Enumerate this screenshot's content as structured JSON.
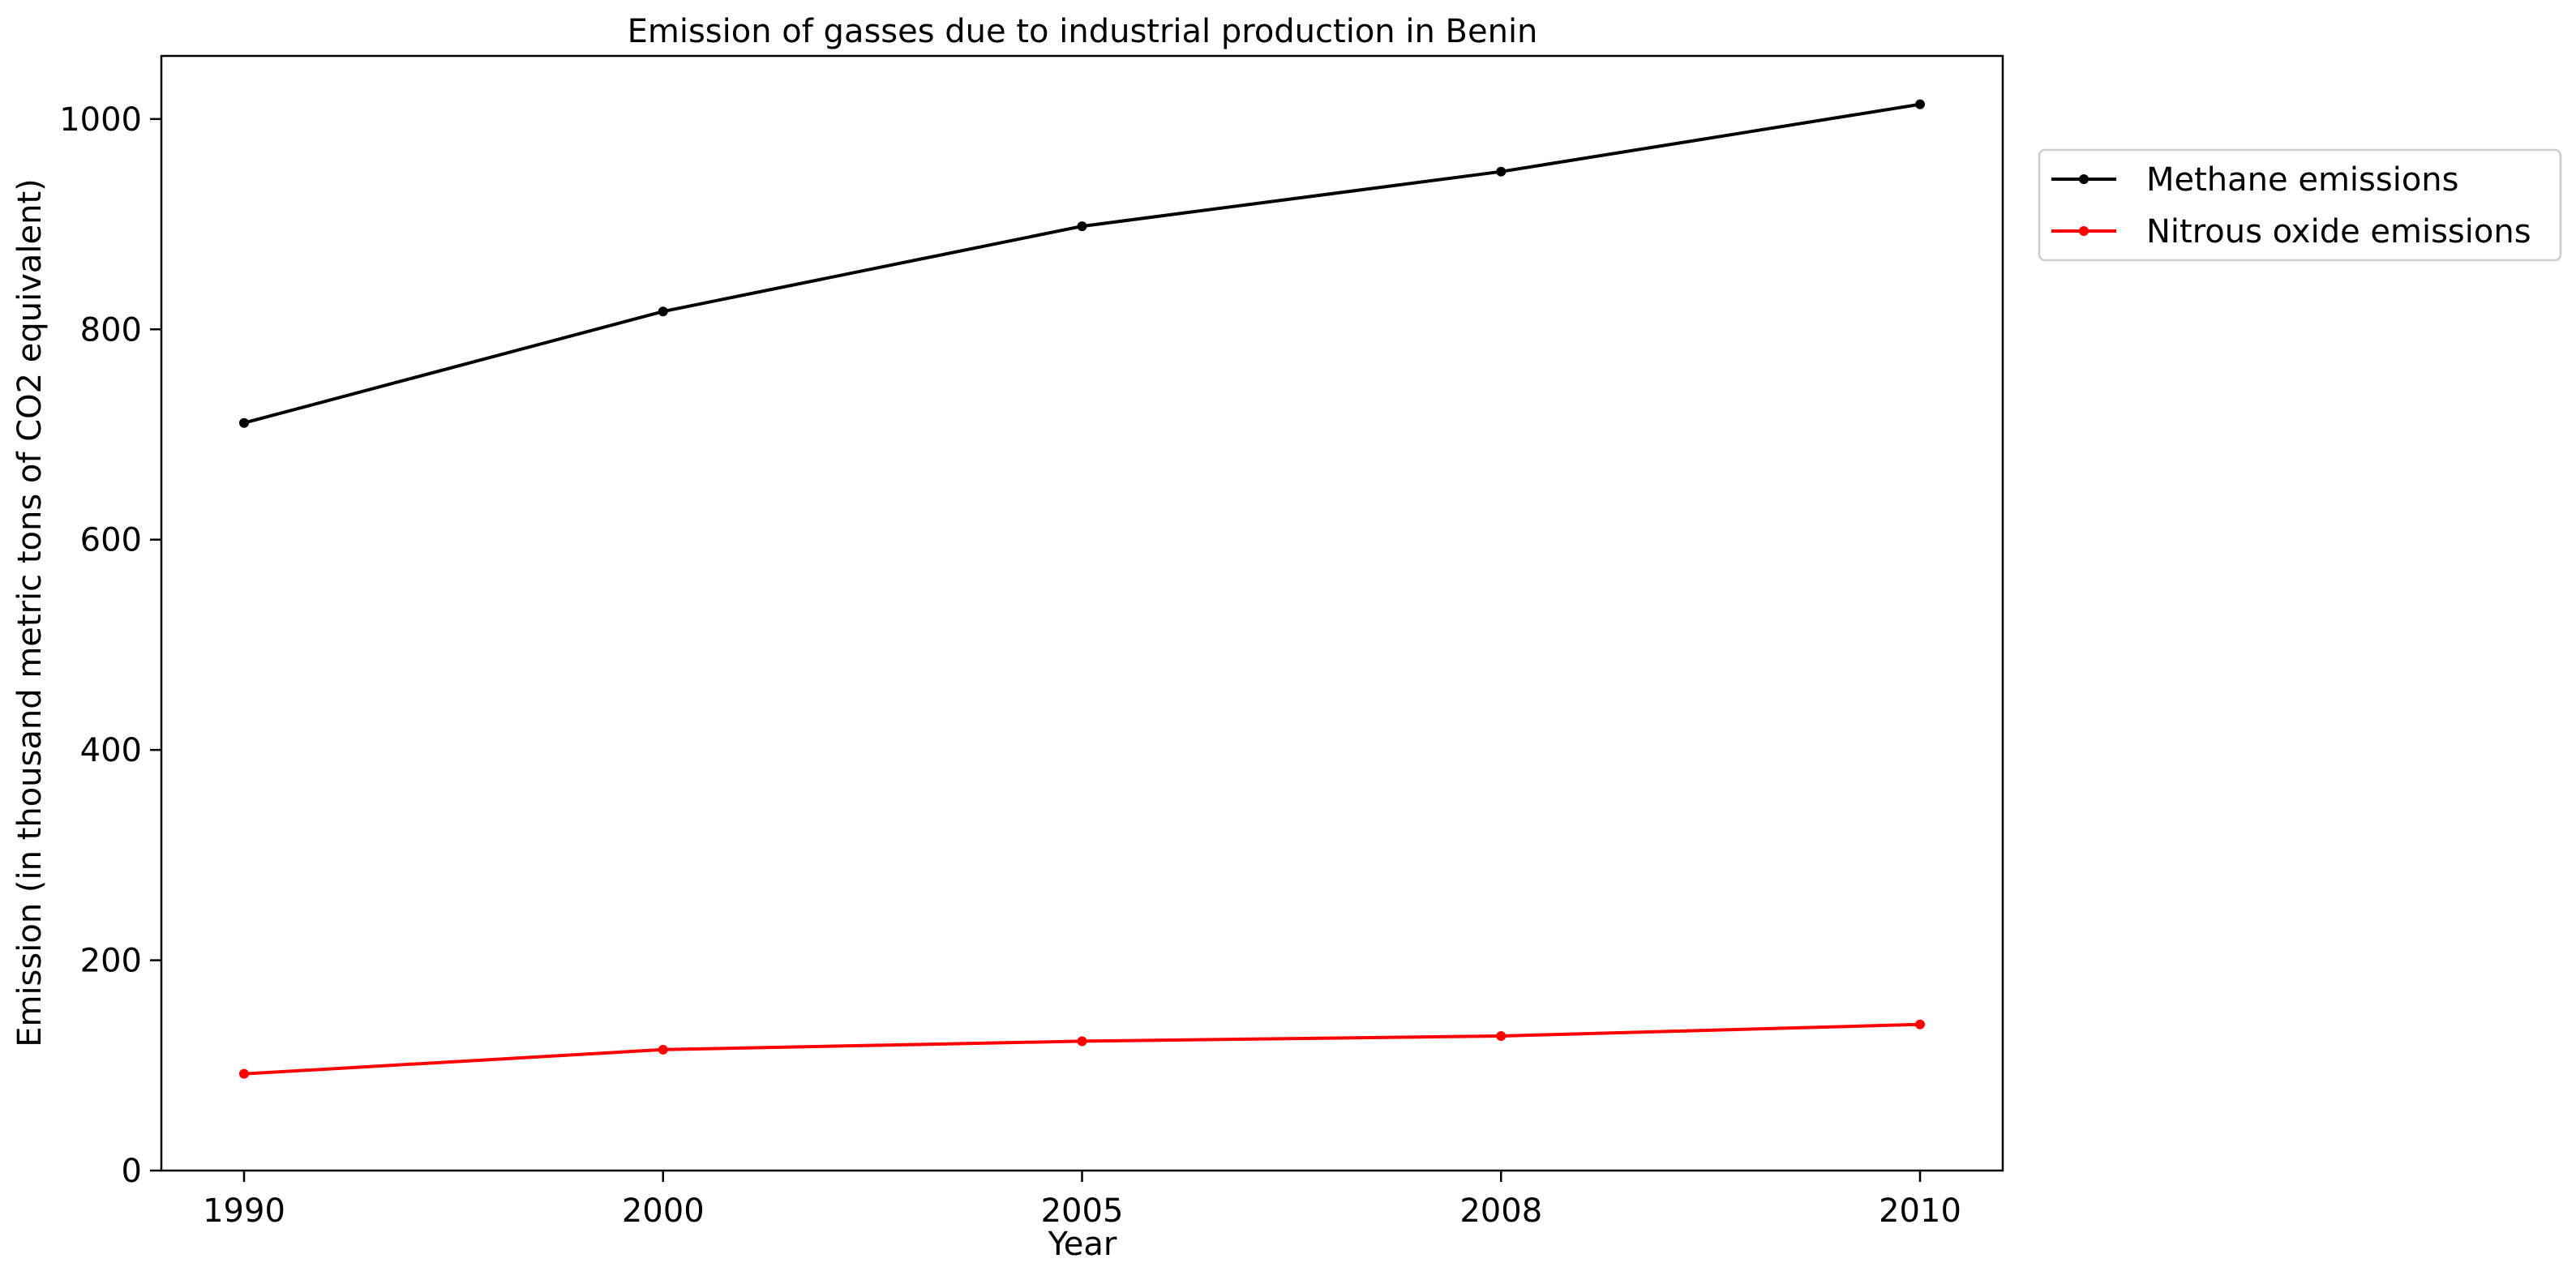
{
  "chart_data": {
    "type": "line",
    "title": "Emission of gasses due to industrial production in Benin",
    "xlabel": "Year",
    "ylabel": "Emission (in thousand metric tons of CO2 equivalent)",
    "categories": [
      "1990",
      "2000",
      "2005",
      "2008",
      "2010"
    ],
    "ylim": [
      0,
      1060
    ],
    "yticks": [
      0,
      200,
      400,
      600,
      800,
      1000
    ],
    "grid": false,
    "legend_position": "outside-top-right",
    "series": [
      {
        "name": "Methane emissions",
        "color": "#000000",
        "values": [
          711,
          817,
          898,
          950,
          1014
        ]
      },
      {
        "name": "Nitrous oxide emissions",
        "color": "#ff0000",
        "values": [
          92,
          115,
          123,
          128,
          139
        ]
      }
    ]
  }
}
